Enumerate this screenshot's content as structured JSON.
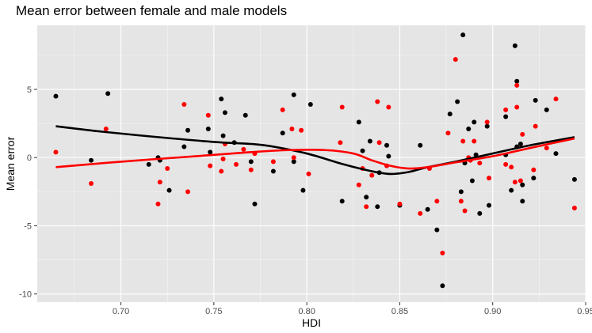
{
  "chart_data": {
    "type": "scatter",
    "title": "Mean error between female and male models",
    "xlabel": "HDI",
    "ylabel": "Mean error",
    "xlim": [
      0.655,
      0.95
    ],
    "ylim": [
      -10.6,
      9.7
    ],
    "x_ticks": [
      0.7,
      0.75,
      0.8,
      0.85,
      0.9,
      0.95
    ],
    "x_tick_labels": [
      "0.70",
      "0.75",
      "0.80",
      "0.85",
      "0.90",
      "0.95"
    ],
    "y_ticks": [
      -10,
      -5,
      0,
      5
    ],
    "y_tick_labels": [
      "-10",
      "-5",
      "0",
      "5"
    ],
    "grid": true,
    "legend": "none",
    "colors": {
      "panel": "#e5e5e5",
      "grid": "#ffffff",
      "black_series": "#000000",
      "red_series": "#ff0000"
    },
    "series": [
      {
        "color": "#000000",
        "points": [
          [
            0.665,
            4.5
          ],
          [
            0.684,
            -0.2
          ],
          [
            0.693,
            4.7
          ],
          [
            0.715,
            -0.5
          ],
          [
            0.72,
            0.0
          ],
          [
            0.721,
            -0.2
          ],
          [
            0.726,
            -2.4
          ],
          [
            0.734,
            0.8
          ],
          [
            0.736,
            2.0
          ],
          [
            0.747,
            2.1
          ],
          [
            0.748,
            0.4
          ],
          [
            0.754,
            4.3
          ],
          [
            0.755,
            1.6
          ],
          [
            0.756,
            3.3
          ],
          [
            0.761,
            1.1
          ],
          [
            0.767,
            3.1
          ],
          [
            0.77,
            -0.3
          ],
          [
            0.772,
            -3.4
          ],
          [
            0.782,
            -1.0
          ],
          [
            0.787,
            1.8
          ],
          [
            0.793,
            4.6
          ],
          [
            0.793,
            -0.3
          ],
          [
            0.798,
            -2.4
          ],
          [
            0.802,
            3.9
          ],
          [
            0.819,
            -3.2
          ],
          [
            0.828,
            2.6
          ],
          [
            0.83,
            0.5
          ],
          [
            0.832,
            -2.9
          ],
          [
            0.834,
            1.2
          ],
          [
            0.838,
            -3.6
          ],
          [
            0.839,
            -1.1
          ],
          [
            0.843,
            0.9
          ],
          [
            0.844,
            0.1
          ],
          [
            0.85,
            -3.5
          ],
          [
            0.861,
            0.9
          ],
          [
            0.865,
            -3.8
          ],
          [
            0.87,
            -5.3
          ],
          [
            0.873,
            -9.4
          ],
          [
            0.877,
            3.2
          ],
          [
            0.881,
            4.1
          ],
          [
            0.883,
            -2.5
          ],
          [
            0.884,
            9.0
          ],
          [
            0.885,
            -0.4
          ],
          [
            0.887,
            2.1
          ],
          [
            0.889,
            -1.7
          ],
          [
            0.89,
            2.6
          ],
          [
            0.891,
            0.2
          ],
          [
            0.893,
            -4.1
          ],
          [
            0.897,
            2.3
          ],
          [
            0.898,
            -3.5
          ],
          [
            0.907,
            3.0
          ],
          [
            0.907,
            0.2
          ],
          [
            0.91,
            -2.4
          ],
          [
            0.912,
            8.2
          ],
          [
            0.913,
            5.6
          ],
          [
            0.913,
            0.8
          ],
          [
            0.915,
            1.0
          ],
          [
            0.916,
            -2.0
          ],
          [
            0.916,
            -3.2
          ],
          [
            0.922,
            -1.5
          ],
          [
            0.923,
            4.2
          ],
          [
            0.929,
            3.5
          ],
          [
            0.934,
            0.3
          ],
          [
            0.944,
            -1.6
          ]
        ],
        "smooth": [
          [
            0.665,
            2.3
          ],
          [
            0.69,
            1.9
          ],
          [
            0.72,
            1.5
          ],
          [
            0.75,
            1.15
          ],
          [
            0.77,
            1.0
          ],
          [
            0.78,
            0.85
          ],
          [
            0.8,
            0.3
          ],
          [
            0.82,
            -0.5
          ],
          [
            0.835,
            -1.0
          ],
          [
            0.845,
            -1.2
          ],
          [
            0.855,
            -1.05
          ],
          [
            0.865,
            -0.7
          ],
          [
            0.88,
            -0.3
          ],
          [
            0.9,
            0.3
          ],
          [
            0.92,
            0.9
          ],
          [
            0.944,
            1.5
          ]
        ]
      },
      {
        "color": "#ff0000",
        "points": [
          [
            0.665,
            0.4
          ],
          [
            0.684,
            -1.9
          ],
          [
            0.692,
            2.1
          ],
          [
            0.72,
            -3.4
          ],
          [
            0.721,
            -1.8
          ],
          [
            0.725,
            -0.8
          ],
          [
            0.734,
            3.9
          ],
          [
            0.736,
            -2.5
          ],
          [
            0.747,
            3.1
          ],
          [
            0.748,
            -0.6
          ],
          [
            0.754,
            -1.0
          ],
          [
            0.755,
            -0.1
          ],
          [
            0.756,
            1.0
          ],
          [
            0.762,
            -0.5
          ],
          [
            0.766,
            0.6
          ],
          [
            0.77,
            -0.9
          ],
          [
            0.772,
            0.3
          ],
          [
            0.782,
            -0.3
          ],
          [
            0.787,
            3.5
          ],
          [
            0.792,
            2.1
          ],
          [
            0.793,
            0.0
          ],
          [
            0.797,
            2.0
          ],
          [
            0.801,
            -1.2
          ],
          [
            0.818,
            1.1
          ],
          [
            0.819,
            3.7
          ],
          [
            0.828,
            -2.0
          ],
          [
            0.83,
            -0.8
          ],
          [
            0.832,
            -3.6
          ],
          [
            0.835,
            -1.3
          ],
          [
            0.838,
            4.1
          ],
          [
            0.839,
            1.1
          ],
          [
            0.843,
            -0.6
          ],
          [
            0.844,
            3.7
          ],
          [
            0.85,
            -3.4
          ],
          [
            0.861,
            -4.1
          ],
          [
            0.866,
            -0.8
          ],
          [
            0.87,
            -3.2
          ],
          [
            0.873,
            -7.0
          ],
          [
            0.876,
            1.8
          ],
          [
            0.88,
            7.2
          ],
          [
            0.883,
            -3.2
          ],
          [
            0.884,
            1.2
          ],
          [
            0.885,
            -3.9
          ],
          [
            0.887,
            0.0
          ],
          [
            0.888,
            -0.2
          ],
          [
            0.89,
            1.2
          ],
          [
            0.893,
            -0.4
          ],
          [
            0.897,
            2.6
          ],
          [
            0.898,
            -1.5
          ],
          [
            0.907,
            3.5
          ],
          [
            0.907,
            -0.5
          ],
          [
            0.91,
            -0.7
          ],
          [
            0.912,
            -1.8
          ],
          [
            0.913,
            5.3
          ],
          [
            0.913,
            3.7
          ],
          [
            0.915,
            -1.7
          ],
          [
            0.916,
            1.7
          ],
          [
            0.922,
            -0.9
          ],
          [
            0.923,
            2.3
          ],
          [
            0.929,
            0.7
          ],
          [
            0.934,
            4.3
          ],
          [
            0.944,
            -3.7
          ]
        ],
        "smooth": [
          [
            0.665,
            -0.7
          ],
          [
            0.7,
            -0.3
          ],
          [
            0.74,
            0.1
          ],
          [
            0.77,
            0.4
          ],
          [
            0.79,
            0.55
          ],
          [
            0.81,
            0.55
          ],
          [
            0.825,
            0.3
          ],
          [
            0.835,
            -0.2
          ],
          [
            0.845,
            -0.6
          ],
          [
            0.855,
            -0.8
          ],
          [
            0.865,
            -0.7
          ],
          [
            0.88,
            -0.35
          ],
          [
            0.9,
            0.1
          ],
          [
            0.92,
            0.7
          ],
          [
            0.944,
            1.4
          ]
        ]
      }
    ]
  }
}
